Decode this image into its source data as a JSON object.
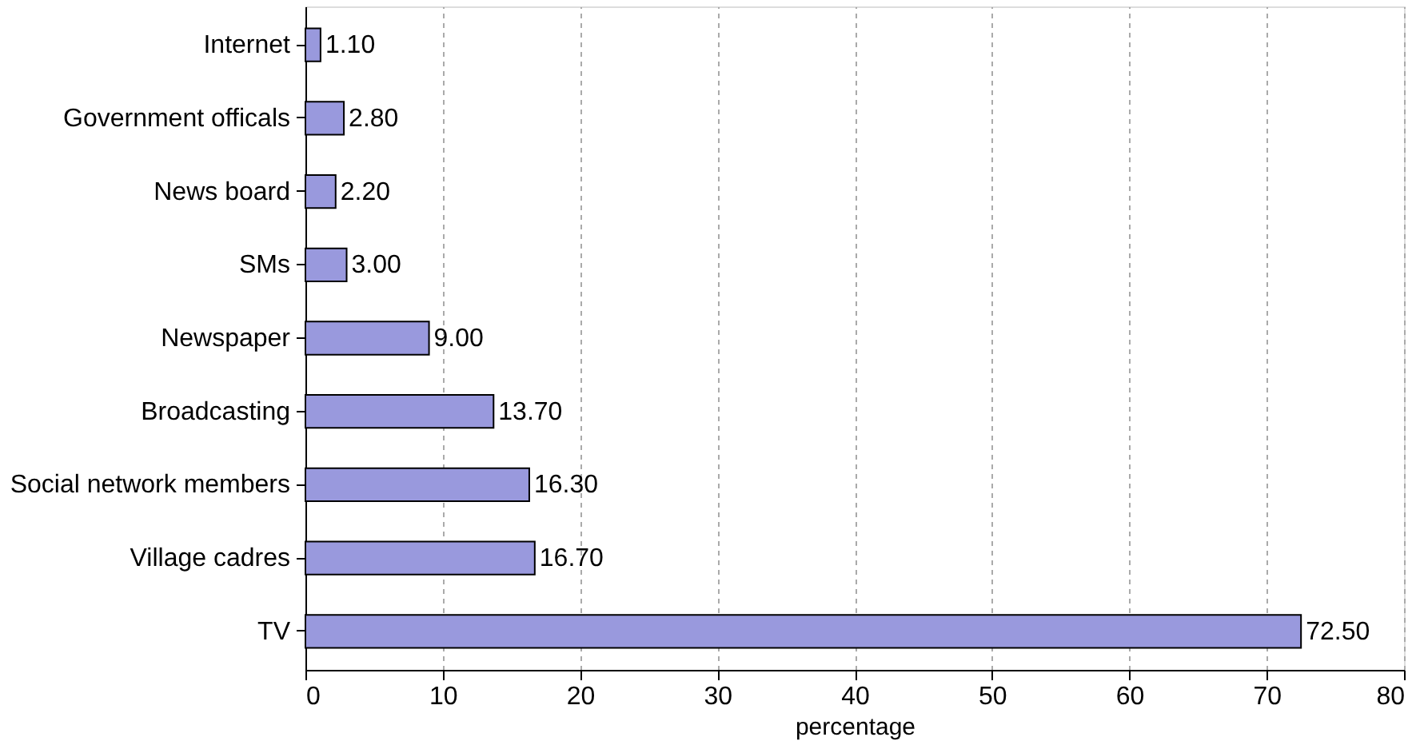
{
  "chart_data": {
    "type": "bar",
    "orientation": "horizontal",
    "xlabel": "percentage",
    "categories": [
      "Internet",
      "Government officals",
      "News board",
      "SMs",
      "Newspaper",
      "Broadcasting",
      "Social network members",
      "Village cadres",
      "TV"
    ],
    "values": [
      1.1,
      2.8,
      2.2,
      3.0,
      9.0,
      13.7,
      16.3,
      16.7,
      72.5
    ],
    "value_labels": [
      "1.10",
      "2.80",
      "2.20",
      "3.00",
      "9.00",
      "13.70",
      "16.30",
      "16.70",
      "72.50"
    ],
    "color": "#9999dd",
    "xlim": [
      0,
      80
    ],
    "xticks": [
      0,
      10,
      20,
      30,
      40,
      50,
      60,
      70,
      80
    ],
    "grid": "x"
  }
}
